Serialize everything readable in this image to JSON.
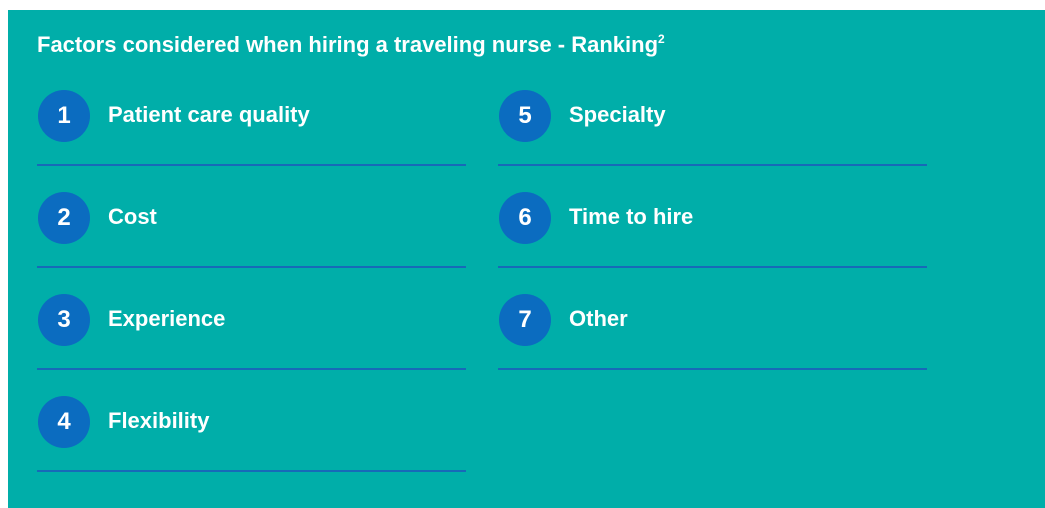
{
  "title": "Factors considered when hiring a traveling nurse - Ranking",
  "title_superscript": "2",
  "items": [
    {
      "rank": 1,
      "label": "Patient care quality"
    },
    {
      "rank": 2,
      "label": "Cost"
    },
    {
      "rank": 3,
      "label": "Experience"
    },
    {
      "rank": 4,
      "label": "Flexibility"
    },
    {
      "rank": 5,
      "label": "Specialty"
    },
    {
      "rank": 6,
      "label": "Time to hire"
    },
    {
      "rank": 7,
      "label": "Other"
    }
  ]
}
